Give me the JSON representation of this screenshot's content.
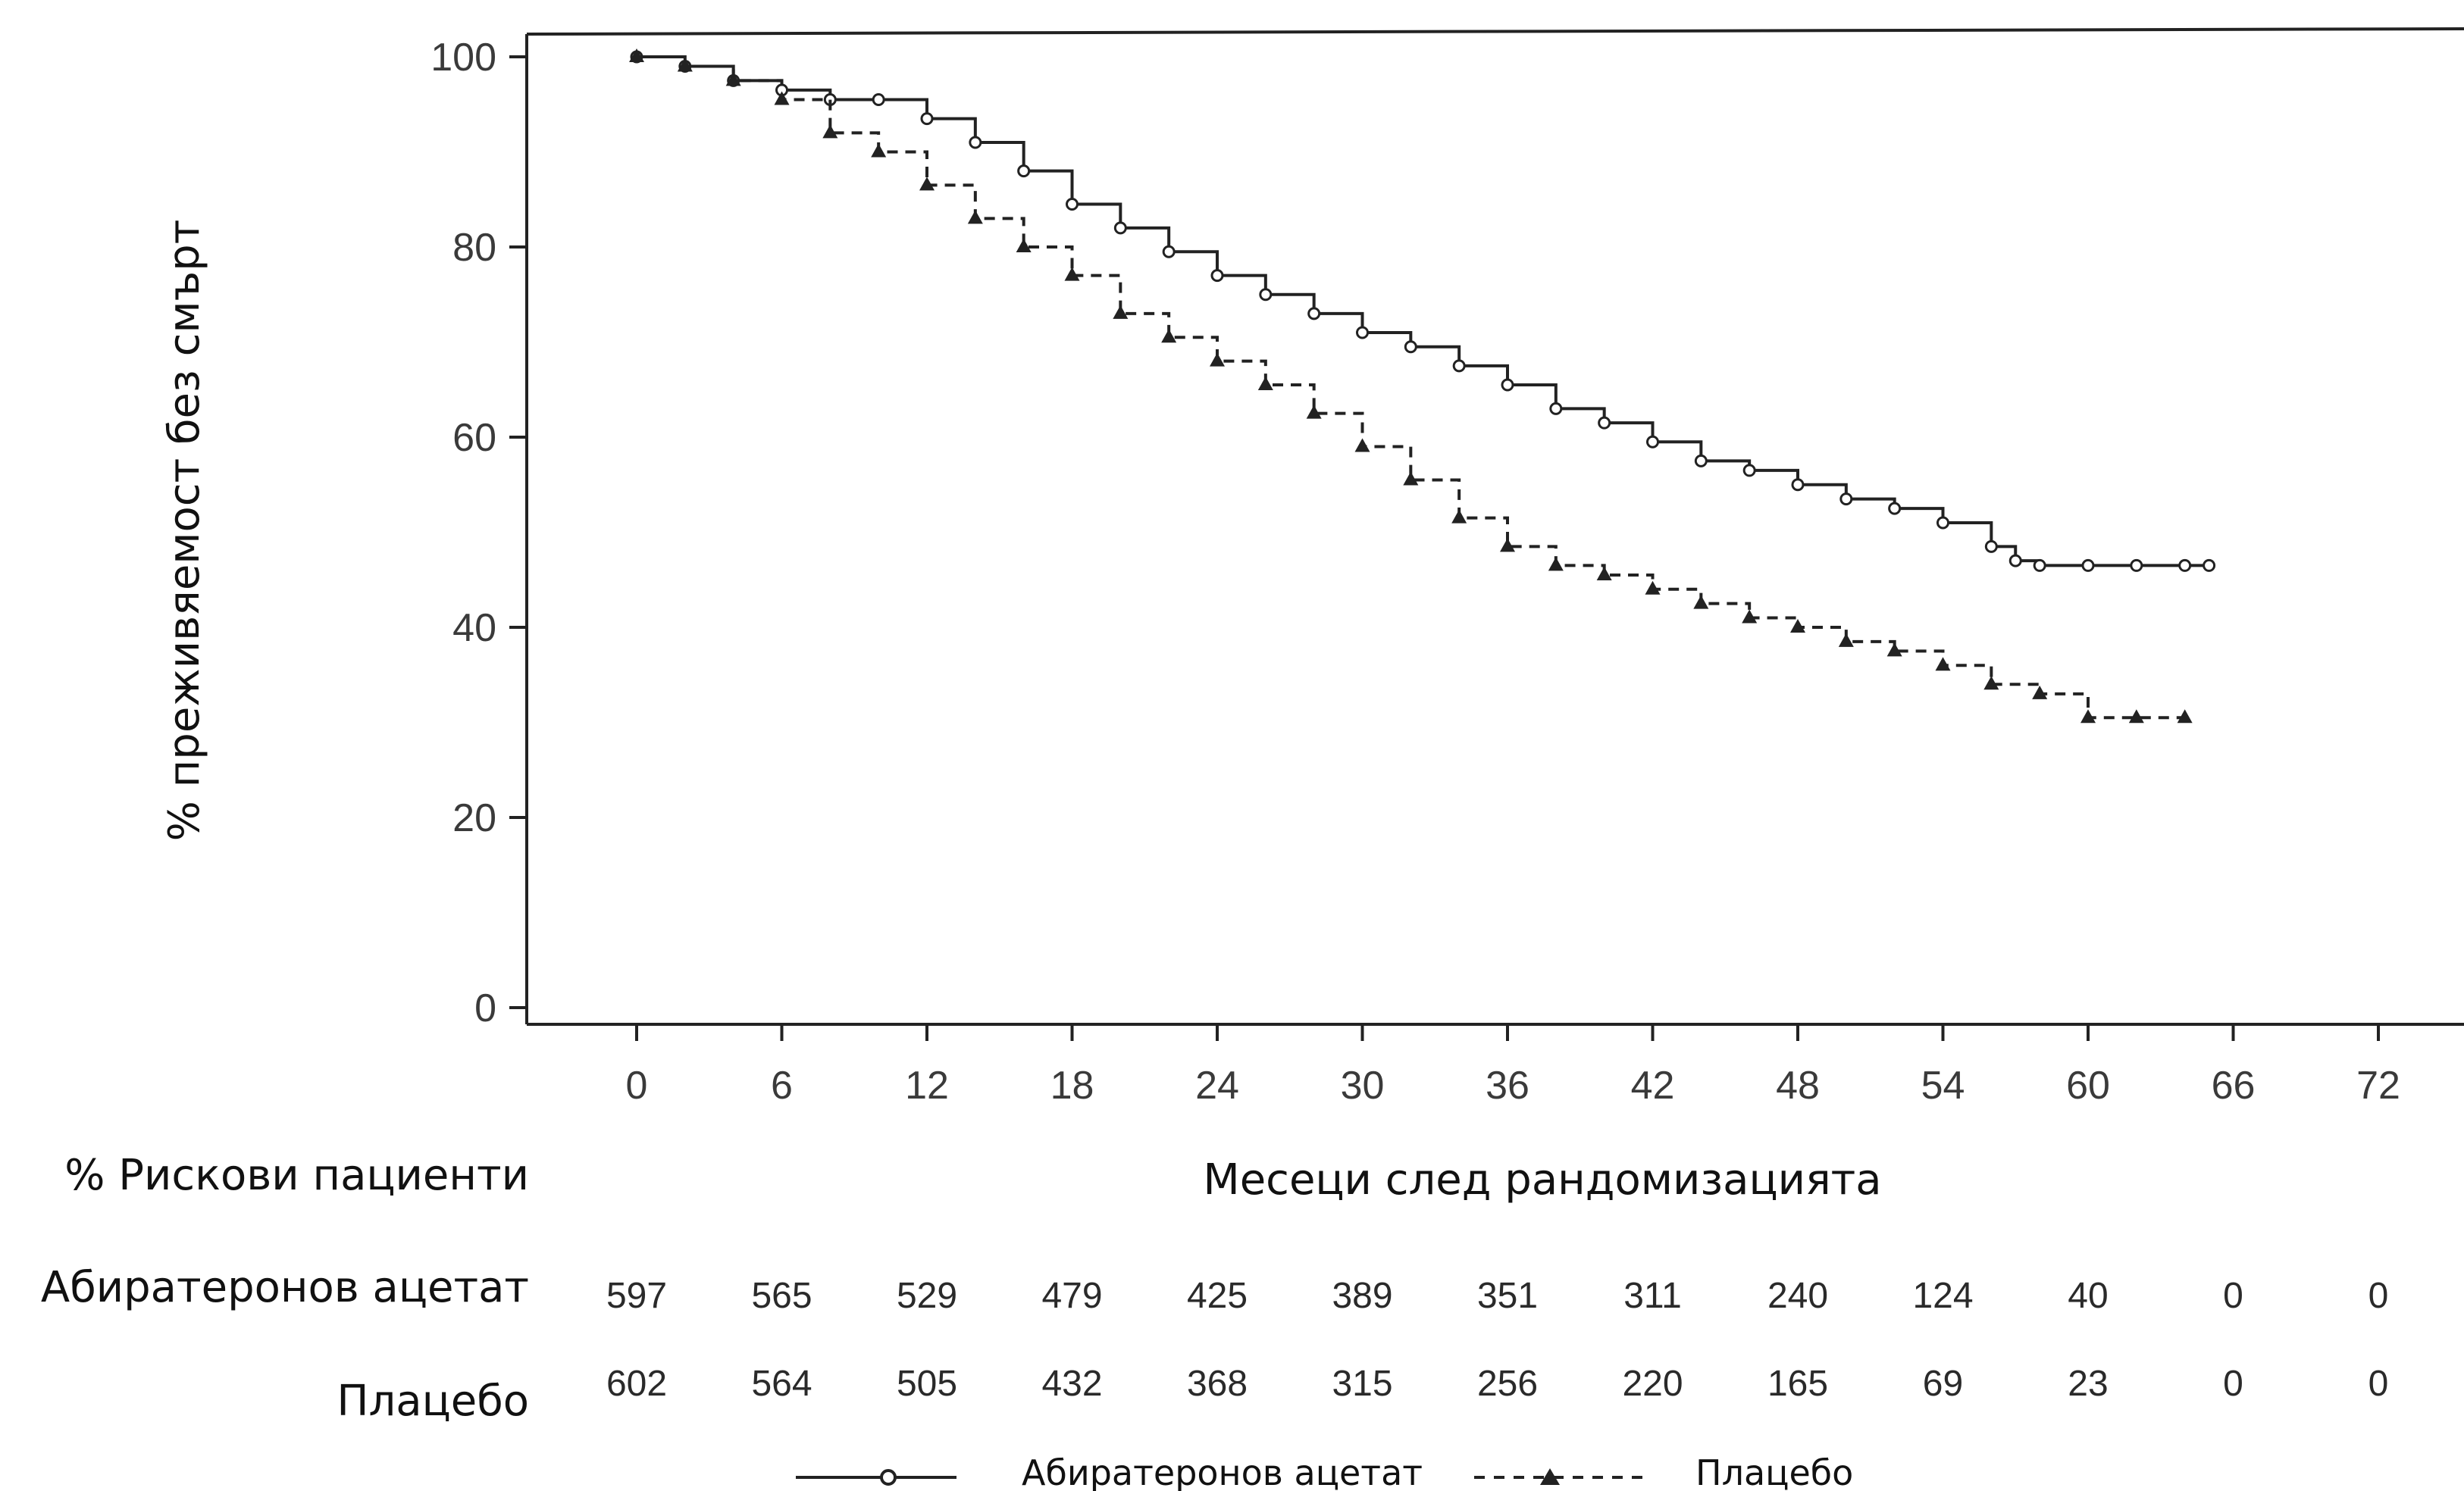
{
  "chart_data": {
    "type": "line",
    "title": "",
    "xlabel": "Месеци след рандомизацията",
    "ylabel": "% преживяемост без смърт",
    "xlim": [
      0,
      72
    ],
    "ylim": [
      0,
      100
    ],
    "x_ticks": [
      0,
      6,
      12,
      18,
      24,
      30,
      36,
      42,
      48,
      54,
      60,
      66,
      72
    ],
    "y_ticks": [
      0,
      20,
      40,
      60,
      80,
      100
    ],
    "grid": false,
    "legend_position": "bottom",
    "series": [
      {
        "name": "Абиратеронов ацетат",
        "color": "#222222",
        "marker": "circle",
        "line_style": "solid",
        "x": [
          0,
          2,
          4,
          6,
          8,
          10,
          12,
          14,
          16,
          18,
          20,
          22,
          24,
          26,
          28,
          30,
          32,
          34,
          36,
          38,
          40,
          42,
          44,
          46,
          48,
          50,
          52,
          54,
          56,
          57,
          58,
          60,
          62,
          64,
          65
        ],
        "y": [
          100,
          99,
          97.5,
          96.5,
          95.5,
          95.5,
          93.5,
          91,
          88,
          84.5,
          82,
          79.5,
          77,
          75,
          73,
          71,
          69.5,
          67.5,
          65.5,
          63,
          61.5,
          59.5,
          57.5,
          56.5,
          55,
          53.5,
          52.5,
          51,
          48.5,
          47,
          46.5,
          46.5,
          46.5,
          46.5,
          46.5
        ]
      },
      {
        "name": "Плацебо",
        "color": "#222222",
        "marker": "triangle",
        "line_style": "dashed",
        "x": [
          0,
          2,
          4,
          6,
          8,
          10,
          12,
          14,
          16,
          18,
          20,
          22,
          24,
          26,
          28,
          30,
          32,
          34,
          36,
          38,
          40,
          42,
          44,
          46,
          48,
          50,
          52,
          54,
          56,
          58,
          60,
          62,
          64
        ],
        "y": [
          100,
          99,
          97.5,
          95.5,
          92,
          90,
          86.5,
          83,
          80,
          77,
          73,
          70.5,
          68,
          65.5,
          62.5,
          59,
          55.5,
          51.5,
          48.5,
          46.5,
          45.5,
          44,
          42.5,
          41,
          40,
          38.5,
          37.5,
          36,
          34,
          33,
          30.5,
          30.5,
          30.5
        ]
      }
    ],
    "risk_table": {
      "title": "% Рискови пациенти",
      "times": [
        0,
        6,
        12,
        18,
        24,
        30,
        36,
        42,
        48,
        54,
        60,
        66,
        72
      ],
      "rows": [
        {
          "name": "Абиратеронов ацетат",
          "values": [
            "597",
            "565",
            "529",
            "479",
            "425",
            "389",
            "351",
            "311",
            "240",
            "124",
            "40",
            "0",
            "0"
          ]
        },
        {
          "name": "Плацебо",
          "values": [
            "602",
            "564",
            "505",
            "432",
            "368",
            "315",
            "256",
            "220",
            "165",
            "69",
            "23",
            "0",
            "0"
          ]
        }
      ]
    },
    "legend": [
      {
        "name": "Абиратеронов ацетат",
        "marker": "circle",
        "line_style": "solid"
      },
      {
        "name": "Плацебо",
        "marker": "triangle",
        "line_style": "dashed"
      }
    ]
  }
}
